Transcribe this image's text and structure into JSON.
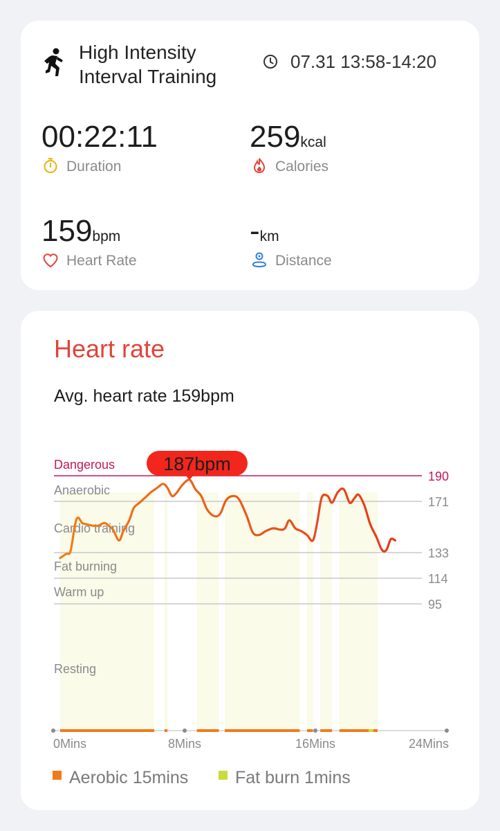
{
  "summary": {
    "workout_type": "High Intensity Interval Training",
    "time_range": "07.31 13:58-14:20",
    "duration": {
      "value": "00:22:11",
      "label": "Duration"
    },
    "calories": {
      "value": "259",
      "unit": "kcal",
      "label": "Calories"
    },
    "heart_rate": {
      "value": "159",
      "unit": "bpm",
      "label": "Heart Rate"
    },
    "distance": {
      "value": "-",
      "unit": "km",
      "label": "Distance"
    }
  },
  "heart_rate_card": {
    "title": "Heart rate",
    "avg_text": "Avg. heart rate 159bpm",
    "max_badge": "187bpm",
    "legend": [
      {
        "label": "Aerobic 15mins",
        "color": "#f27a1a"
      },
      {
        "label": "Fat burn 1mins",
        "color": "#c9dc3a"
      }
    ]
  },
  "colors": {
    "accent_red": "#e0443a",
    "dangerous": "#c2185b",
    "line_start": "#f07f1a",
    "line_end": "#e43a1e",
    "zone_fill": "#fafbe8",
    "icon_yellow": "#e8b81c",
    "icon_blue": "#2f7de0"
  },
  "chart_data": {
    "type": "line",
    "x_unit": "Mins",
    "xlim": [
      0,
      24
    ],
    "x_ticks": [
      {
        "value": 0,
        "label": "0Mins"
      },
      {
        "value": 8,
        "label": "8Mins"
      },
      {
        "value": 16,
        "label": "16Mins"
      },
      {
        "value": 24,
        "label": "24Mins"
      }
    ],
    "zones": [
      {
        "name": "Dangerous",
        "threshold": 190,
        "threshold_label": "190"
      },
      {
        "name": "Anaerobic",
        "threshold": 171,
        "threshold_label": "171"
      },
      {
        "name": "Cardio training",
        "threshold": 133,
        "threshold_label": "133"
      },
      {
        "name": "Fat burning",
        "threshold": 114,
        "threshold_label": "114"
      },
      {
        "name": "Warm up",
        "threshold": 95,
        "threshold_label": "95"
      },
      {
        "name": "Resting",
        "threshold": 0,
        "threshold_label": ""
      }
    ],
    "max_point": {
      "x": 8.8,
      "y": 187,
      "label": "187bpm"
    },
    "series": [
      {
        "points": [
          [
            0.0,
            129
          ],
          [
            0.4,
            132
          ],
          [
            0.7,
            134
          ],
          [
            1.0,
            153
          ],
          [
            1.2,
            159
          ],
          [
            1.5,
            155
          ],
          [
            1.8,
            154
          ],
          [
            2.2,
            153
          ],
          [
            2.6,
            153
          ],
          [
            3.0,
            155
          ],
          [
            3.3,
            153
          ],
          [
            3.6,
            150
          ],
          [
            4.0,
            142
          ],
          [
            4.3,
            149
          ],
          [
            4.7,
            157
          ],
          [
            5.0,
            166
          ],
          [
            5.4,
            170
          ],
          [
            5.8,
            174
          ],
          [
            6.2,
            178
          ],
          [
            6.6,
            181
          ],
          [
            7.0,
            184
          ],
          [
            7.3,
            181
          ],
          [
            7.6,
            175
          ],
          [
            7.9,
            177
          ],
          [
            8.3,
            183
          ],
          [
            8.8,
            187
          ],
          [
            9.2,
            180
          ],
          [
            9.6,
            175
          ],
          [
            10.0,
            165
          ],
          [
            10.5,
            160
          ],
          [
            10.9,
            162
          ],
          [
            11.3,
            172
          ],
          [
            11.8,
            175
          ],
          [
            12.2,
            172
          ],
          [
            12.7,
            160
          ],
          [
            13.1,
            148
          ],
          [
            13.5,
            146
          ],
          [
            14.0,
            149
          ],
          [
            14.5,
            151
          ],
          [
            15.0,
            150
          ],
          [
            15.3,
            151
          ],
          [
            15.6,
            157
          ],
          [
            16.0,
            151
          ],
          [
            16.4,
            149
          ],
          [
            16.8,
            146
          ],
          [
            17.2,
            142
          ],
          [
            17.5,
            156
          ],
          [
            17.8,
            174
          ],
          [
            18.2,
            175
          ],
          [
            18.5,
            170
          ],
          [
            18.9,
            178
          ],
          [
            19.3,
            180
          ],
          [
            19.7,
            170
          ],
          [
            20.0,
            173
          ],
          [
            20.3,
            176
          ],
          [
            20.7,
            168
          ],
          [
            21.1,
            154
          ],
          [
            21.5,
            145
          ],
          [
            21.9,
            135
          ],
          [
            22.2,
            135
          ],
          [
            22.5,
            143
          ],
          [
            22.8,
            142
          ]
        ]
      }
    ],
    "zone_segments": [
      {
        "start": 0.0,
        "end": 6.4,
        "zone": "aerobic"
      },
      {
        "start": 7.1,
        "end": 7.3,
        "zone": "aerobic"
      },
      {
        "start": 9.3,
        "end": 10.8,
        "zone": "aerobic"
      },
      {
        "start": 11.2,
        "end": 16.3,
        "zone": "aerobic"
      },
      {
        "start": 16.8,
        "end": 17.2,
        "zone": "aerobic"
      },
      {
        "start": 17.7,
        "end": 18.5,
        "zone": "aerobic"
      },
      {
        "start": 19.0,
        "end": 21.0,
        "zone": "aerobic"
      },
      {
        "start": 21.0,
        "end": 21.3,
        "zone": "fat_burn"
      },
      {
        "start": 21.3,
        "end": 21.6,
        "zone": "aerobic"
      }
    ],
    "legend_placement": "bottom"
  }
}
